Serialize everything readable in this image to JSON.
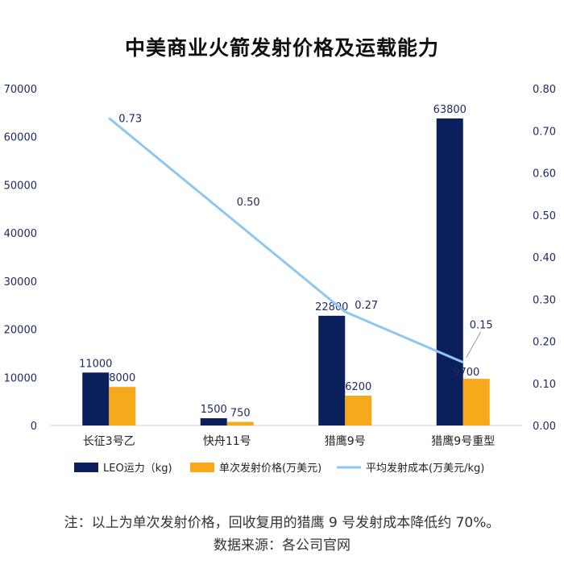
{
  "title": "中美商业火箭发射价格及运载能力",
  "chart_data": {
    "type": "bar",
    "categories": [
      "长征3号乙",
      "快舟11号",
      "猎鹰9号",
      "猎鹰9号重型"
    ],
    "series": [
      {
        "name": "LEO运力（kg)",
        "type": "bar",
        "axis": "left",
        "color": "#0b1f5c",
        "values": [
          11000,
          1500,
          22800,
          63800
        ]
      },
      {
        "name": "单次发射价格(万美元)",
        "type": "bar",
        "axis": "left",
        "color": "#f7a91c",
        "values": [
          8000,
          750,
          6200,
          9700
        ]
      },
      {
        "name": "平均发射成本(万美元/kg)",
        "type": "line",
        "axis": "right",
        "color": "#8ec8f0",
        "values": [
          0.73,
          0.5,
          0.27,
          0.15
        ],
        "labels": [
          "0.73",
          "0.50",
          "0.27",
          "0.15"
        ]
      }
    ],
    "y_left": {
      "min": 0,
      "max": 70000,
      "step": 10000,
      "ticks": [
        "0",
        "10000",
        "20000",
        "30000",
        "40000",
        "50000",
        "60000",
        "70000"
      ]
    },
    "y_right": {
      "min": 0,
      "max": 0.8,
      "step": 0.1,
      "ticks": [
        "0.00",
        "0.10",
        "0.20",
        "0.30",
        "0.40",
        "0.50",
        "0.60",
        "0.70",
        "0.80"
      ]
    },
    "legend_position": "bottom",
    "grid": false
  },
  "footer": {
    "note": "注：以上为单次发射价格，回收复用的猎鹰 9 号发射成本降低约 70%。",
    "source": "数据来源：各公司官网"
  }
}
